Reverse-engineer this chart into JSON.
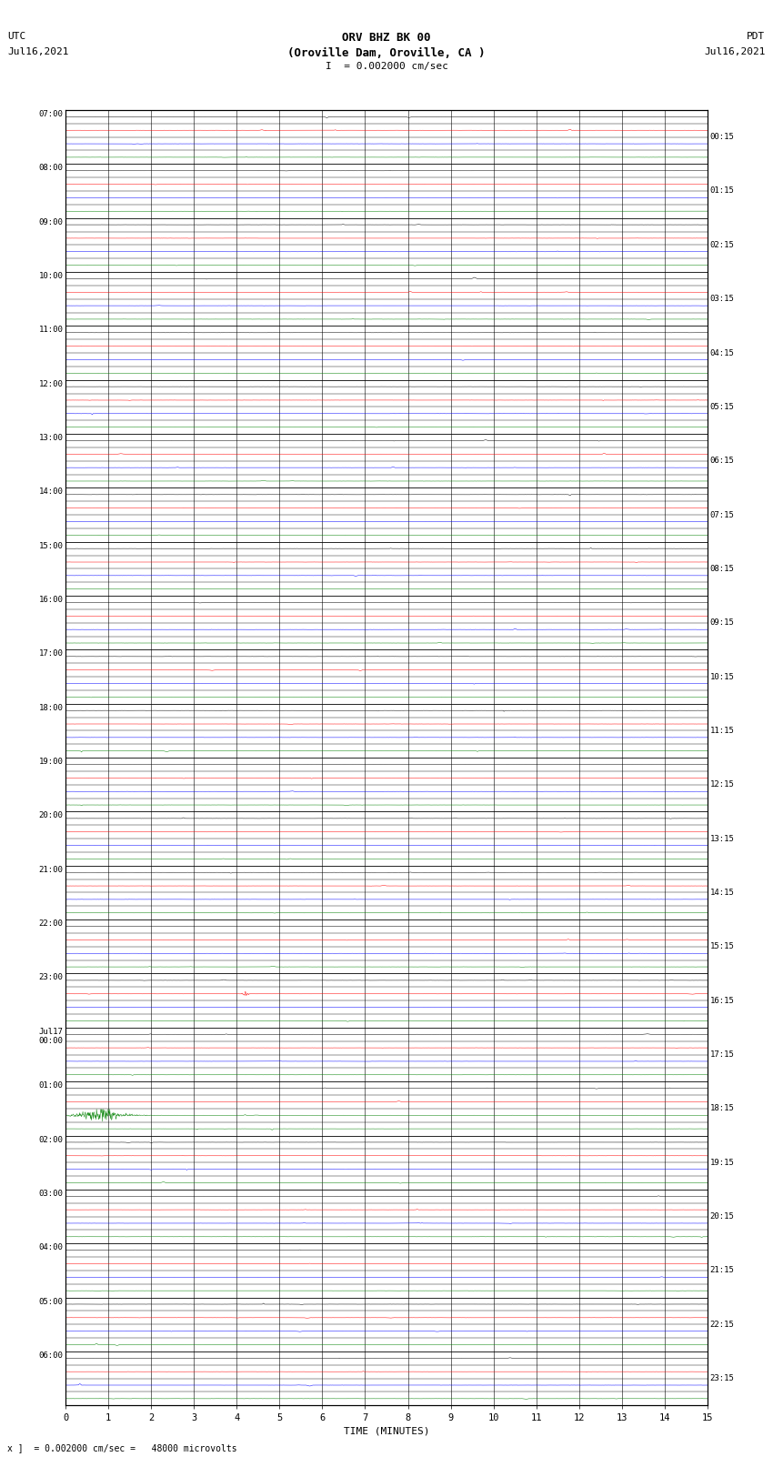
{
  "title_line1": "ORV BHZ BK 00",
  "title_line2": "(Oroville Dam, Oroville, CA )",
  "title_line3": "I  = 0.002000 cm/sec",
  "label_left_top": "UTC",
  "label_left_date": "Jul16,2021",
  "label_right_top": "PDT",
  "label_right_date": "Jul16,2021",
  "xlabel": "TIME (MINUTES)",
  "bottom_note": "x ]  = 0.002000 cm/sec =   48000 microvolts",
  "x_min": 0,
  "x_max": 15,
  "x_ticks": [
    0,
    1,
    2,
    3,
    4,
    5,
    6,
    7,
    8,
    9,
    10,
    11,
    12,
    13,
    14,
    15
  ],
  "num_hour_rows": 24,
  "traces_per_hour": 4,
  "bg_color": "#ffffff",
  "trace_color_black": "#000000",
  "trace_color_red": "#ff0000",
  "trace_color_blue": "#0000ff",
  "trace_color_green": "#008000",
  "grid_color": "#000000",
  "fig_width": 8.5,
  "fig_height": 16.13,
  "left_hour_labels": [
    "07:00",
    "08:00",
    "09:00",
    "10:00",
    "11:00",
    "12:00",
    "13:00",
    "14:00",
    "15:00",
    "16:00",
    "17:00",
    "18:00",
    "19:00",
    "20:00",
    "21:00",
    "22:00",
    "23:00",
    "Jul17\n00:00",
    "01:00",
    "02:00",
    "03:00",
    "04:00",
    "05:00",
    "06:00"
  ],
  "right_hour_labels": [
    "00:15",
    "01:15",
    "02:15",
    "03:15",
    "04:15",
    "05:15",
    "06:15",
    "07:15",
    "08:15",
    "09:15",
    "10:15",
    "11:15",
    "12:15",
    "13:15",
    "14:15",
    "15:15",
    "16:15",
    "17:15",
    "18:15",
    "19:15",
    "20:15",
    "21:15",
    "22:15",
    "23:15"
  ],
  "earthquake_hour": 17,
  "earthquake_trace": 0,
  "earthquake_minute": 4.0,
  "quake_hour": 18,
  "quake_trace": 0,
  "quake_minute": 0.8
}
